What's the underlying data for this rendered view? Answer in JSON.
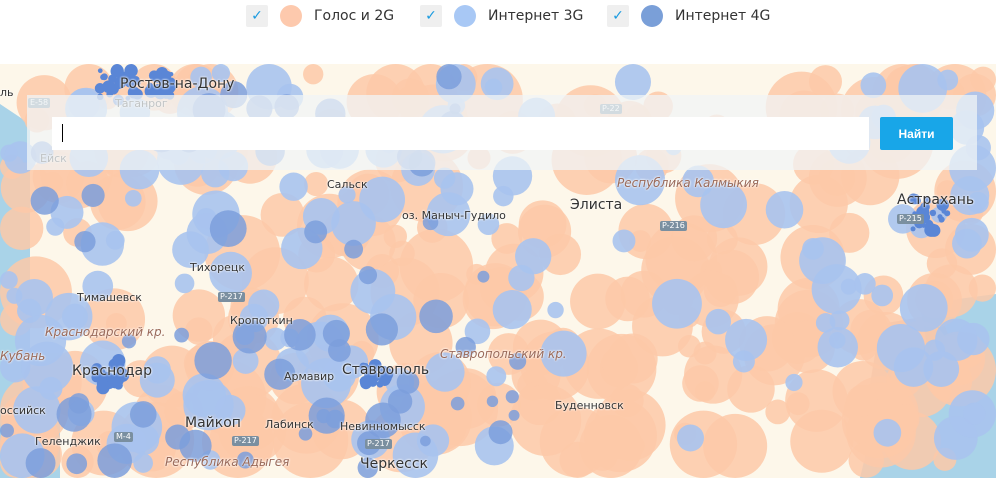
{
  "legend": [
    {
      "label": "Голос и 2G",
      "checked": true,
      "color": "#fdc9ad"
    },
    {
      "label": "Интернет 3G",
      "checked": true,
      "color": "#a8c8f5"
    },
    {
      "label": "Интернет 4G",
      "checked": true,
      "color": "#7a9fd8"
    }
  ],
  "search": {
    "value": "",
    "placeholder": "",
    "button_label": "Найти"
  },
  "map": {
    "colors": {
      "land": "#fdf7ea",
      "sea": "#a9d3e8",
      "voice": "#fdc9a8",
      "g3": "#a9c3ee",
      "g4": "#7c9fdc",
      "g4city": "#5a86d6"
    },
    "labels": [
      "Ростов-на-Дону",
      "Таганрог",
      "Ейск",
      "Сальск",
      "оз. Маныч-Гудило",
      "Элиста",
      "Республика Калмыкия",
      "Астрахань",
      "Тихорецк",
      "Тимашевск",
      "Кропоткин",
      "Краснодарский кр.",
      "Кубань",
      "Армавир",
      "Ставрополь",
      "Ставропольский кр.",
      "Краснодар",
      "Буденновск",
      "Майкоп",
      "Лабинск",
      "Невинномысск",
      "Геленджик",
      "Республика Адыгея",
      "Черкесск",
      "оссийск",
      "ль"
    ],
    "roads": [
      "E-58",
      "P-22",
      "P-216",
      "P-217",
      "M-4",
      "P-217",
      "P-215",
      "P-217"
    ]
  }
}
